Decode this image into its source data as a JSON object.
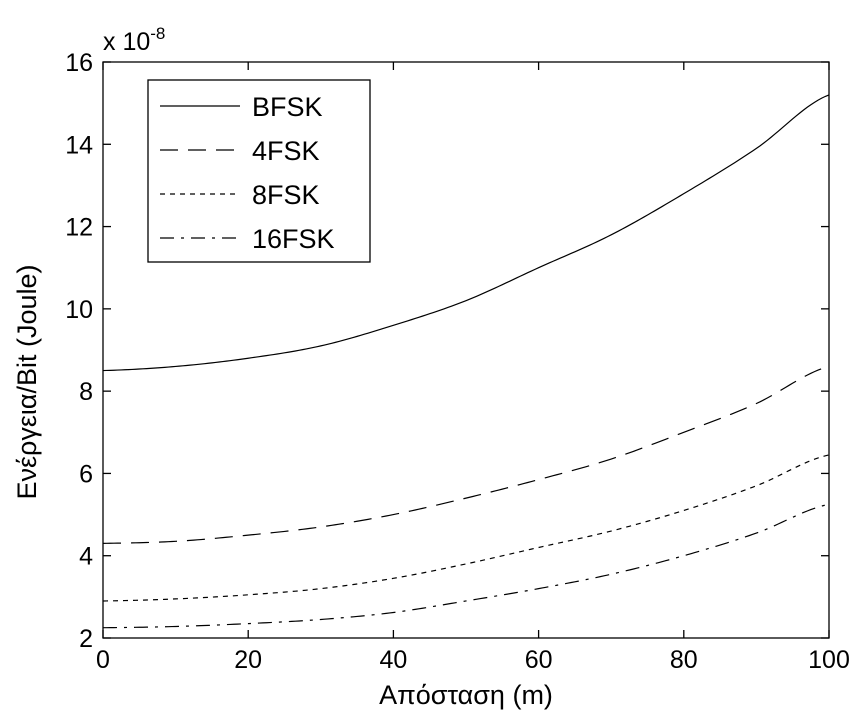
{
  "chart_data": {
    "type": "line",
    "title": "",
    "xlabel": "Απόσταση (m)",
    "ylabel": "Ενέργεια/Bit (Joule)",
    "xlim": [
      0,
      100
    ],
    "ylim": [
      2,
      16
    ],
    "xticks": [
      0,
      20,
      40,
      60,
      80,
      100
    ],
    "yticks": [
      2,
      4,
      6,
      8,
      10,
      12,
      14,
      16
    ],
    "xtick_labels": [
      "0",
      "20",
      "40",
      "60",
      "80",
      "100"
    ],
    "ytick_labels": [
      "2",
      "4",
      "6",
      "8",
      "10",
      "12",
      "14",
      "16"
    ],
    "y_exponent_prefix": "x 10",
    "y_exponent_power": "-8",
    "grid": false,
    "legend_position": "top-left",
    "x": [
      0,
      10,
      20,
      30,
      40,
      50,
      60,
      70,
      80,
      90,
      100
    ],
    "series": [
      {
        "name": "BFSK",
        "line_style": "solid",
        "color": "#000000",
        "values": [
          8.5,
          8.6,
          8.8,
          9.1,
          9.6,
          10.2,
          11.0,
          11.8,
          12.8,
          13.9,
          15.2
        ]
      },
      {
        "name": "4FSK",
        "line_style": "long-dash",
        "color": "#000000",
        "values": [
          4.3,
          4.35,
          4.5,
          4.7,
          5.0,
          5.4,
          5.85,
          6.35,
          7.0,
          7.7,
          8.6
        ]
      },
      {
        "name": "8FSK",
        "line_style": "dotted",
        "color": "#000000",
        "values": [
          2.9,
          2.95,
          3.05,
          3.2,
          3.45,
          3.8,
          4.2,
          4.6,
          5.1,
          5.7,
          6.45
        ]
      },
      {
        "name": "16FSK",
        "line_style": "dash-dot",
        "color": "#000000",
        "values": [
          2.25,
          2.28,
          2.35,
          2.45,
          2.62,
          2.9,
          3.2,
          3.55,
          4.0,
          4.55,
          5.25
        ]
      }
    ]
  }
}
